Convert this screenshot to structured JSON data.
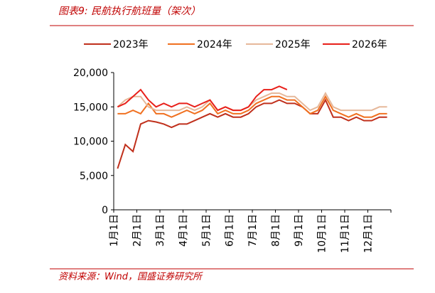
{
  "chart_data": {
    "type": "line",
    "title": "图表9:  民航执行航班量（架次）",
    "source": "资料来源：Wind，国盛证券研究所",
    "categories": [
      "1月1日",
      null,
      null,
      "2月1日",
      null,
      null,
      "3月1日",
      null,
      null,
      "4月1日",
      null,
      null,
      "5月1日",
      null,
      null,
      "6月1日",
      null,
      null,
      "7月1日",
      null,
      null,
      "8月1日",
      null,
      null,
      "9月1日",
      null,
      null,
      "10月1日",
      null,
      null,
      "11月1日",
      null,
      null,
      "12月1日",
      null,
      null
    ],
    "series": [
      {
        "name": "2023年",
        "color": "#c0301c",
        "values": [
          6000,
          9500,
          8500,
          12500,
          13000,
          12800,
          12500,
          12000,
          12500,
          12500,
          13000,
          13500,
          14000,
          13500,
          14000,
          13500,
          13500,
          14000,
          15000,
          15500,
          15500,
          16000,
          15500,
          15500,
          15000,
          14000,
          14000,
          16000,
          13500,
          13500,
          13000,
          13500,
          13000,
          13000,
          13500,
          13500
        ]
      },
      {
        "name": "2024年",
        "color": "#f07020",
        "values": [
          14000,
          14000,
          14500,
          14000,
          15500,
          14000,
          14000,
          13500,
          14000,
          14500,
          14000,
          14500,
          15500,
          14000,
          14500,
          14000,
          14000,
          14500,
          15500,
          16000,
          16500,
          16500,
          16000,
          16000,
          15000,
          14000,
          14500,
          16500,
          14500,
          14000,
          13500,
          14000,
          13500,
          13500,
          14000,
          14000
        ]
      },
      {
        "name": "2025年",
        "color": "#e6b89a",
        "values": [
          15000,
          16000,
          16500,
          16500,
          15000,
          14500,
          14500,
          14500,
          14500,
          15000,
          14500,
          15000,
          16000,
          14500,
          15000,
          14500,
          14500,
          15000,
          16000,
          16500,
          17000,
          17000,
          16500,
          16500,
          15500,
          14500,
          15000,
          17000,
          15000,
          14500,
          14500,
          14500,
          14500,
          14500,
          15000,
          15000
        ]
      },
      {
        "name": "2026年",
        "color": "#e8201a",
        "values": [
          15000,
          15500,
          16500,
          17500,
          16000,
          15000,
          15500,
          15000,
          15500,
          15500,
          15000,
          15500,
          16000,
          14500,
          15000,
          14500,
          14500,
          15000,
          16500,
          17500,
          17500,
          18000,
          17500,
          null,
          null,
          null,
          null,
          null,
          null,
          null,
          null,
          null,
          null,
          null,
          null,
          null
        ]
      }
    ],
    "ylim": [
      0,
      20000
    ],
    "yticks": [
      0,
      {
        "value": 5000,
        "label": "5,000"
      },
      {
        "value": 10000,
        "label": "10,000"
      },
      {
        "value": 15000,
        "label": "15,000"
      },
      {
        "value": 20000,
        "label": "20,000"
      }
    ],
    "legend": "top"
  }
}
